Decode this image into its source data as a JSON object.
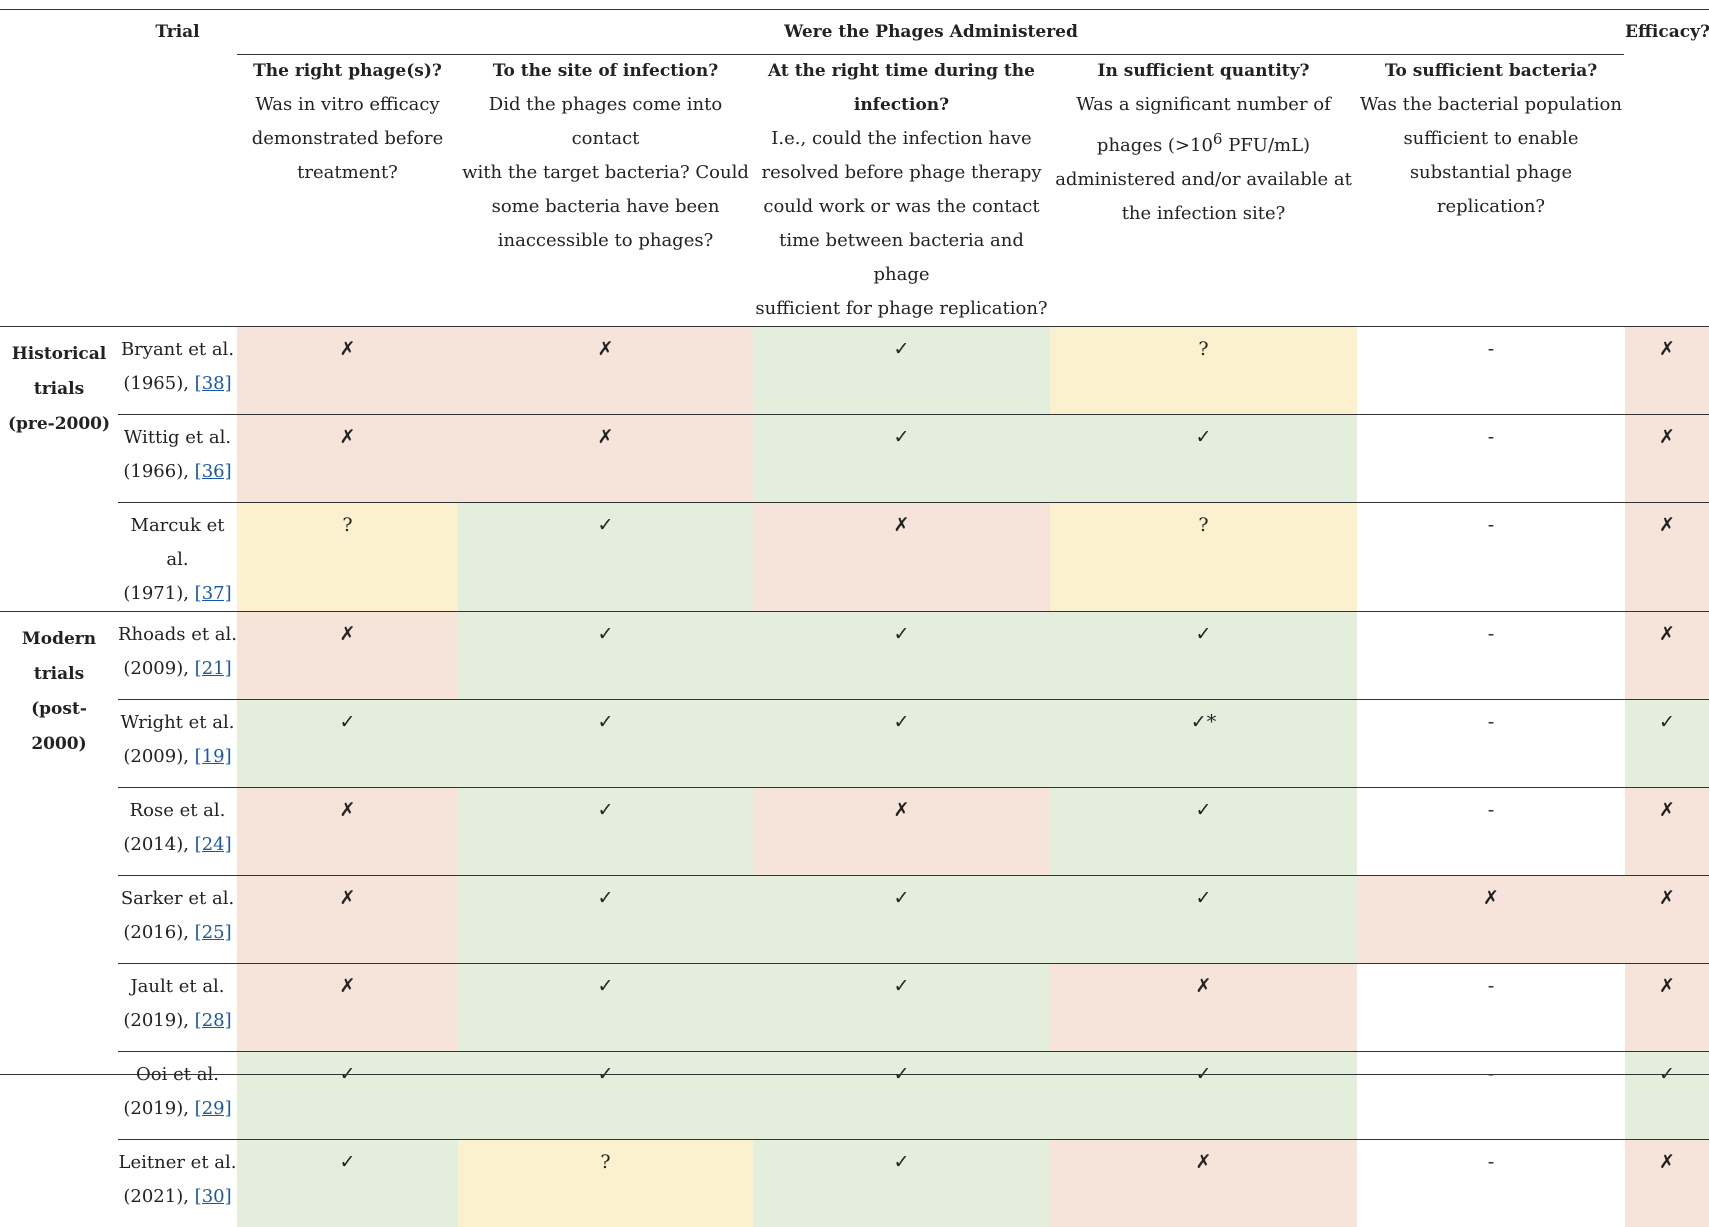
{
  "header": {
    "trial": "Trial",
    "group": "Were the Phages Administered",
    "efficacy": "Efficacy?",
    "columns": [
      {
        "title": "The right phage(s)?",
        "desc": [
          "Was in vitro efficacy",
          "demonstrated before",
          "treatment?"
        ]
      },
      {
        "title": "To the site of infection?",
        "desc": [
          "Did the phages come into contact",
          "with the target bacteria? Could",
          "some bacteria have been",
          "inaccessible to phages?"
        ]
      },
      {
        "title_lines": [
          "At the right time during the",
          "infection?"
        ],
        "desc": [
          "I.e., could the infection have",
          "resolved before phage therapy",
          "could work or was the contact",
          "time between bacteria and phage",
          "sufficient for phage replication?"
        ]
      },
      {
        "title": "In sufficient quantity?",
        "desc_1": "Was a significant number of",
        "desc_2a": "phages (>10",
        "desc_2sup": "6",
        "desc_2b": " PFU/mL)",
        "desc_3": "administered and/or available at",
        "desc_4": "the infection site?"
      },
      {
        "title": "To sufficient bacteria?",
        "desc": [
          "Was the bacterial population",
          "sufficient to enable",
          "substantial phage replication?"
        ]
      }
    ]
  },
  "groups": {
    "historical": [
      "Historical",
      "trials",
      "(pre-2000)"
    ],
    "modern": [
      "Modern",
      "trials",
      "(post-",
      "2000)"
    ]
  },
  "rows": [
    {
      "name": "Bryant et al.",
      "year": "(1965), ",
      "ref": "[38]",
      "cells": [
        "✗",
        "✗",
        "✓",
        "?",
        "-",
        "✗"
      ],
      "colors": [
        "red",
        "red",
        "green",
        "yellow",
        "white",
        "red"
      ]
    },
    {
      "name": "Wittig et al.",
      "year": "(1966), ",
      "ref": "[36]",
      "cells": [
        "✗",
        "✗",
        "✓",
        "✓",
        "-",
        "✗"
      ],
      "colors": [
        "red",
        "red",
        "green",
        "green",
        "white",
        "red"
      ]
    },
    {
      "name": "Marcuk et al.",
      "year": "(1971), ",
      "ref": "[37]",
      "cells": [
        "?",
        "✓",
        "✗",
        "?",
        "-",
        "✗"
      ],
      "colors": [
        "yellow",
        "green",
        "red",
        "yellow",
        "white",
        "red"
      ]
    },
    {
      "name": "Rhoads et al.",
      "year": "(2009), ",
      "ref": "[21]",
      "cells": [
        "✗",
        "✓",
        "✓",
        "✓",
        "-",
        "✗"
      ],
      "colors": [
        "red",
        "green",
        "green",
        "green",
        "white",
        "red"
      ]
    },
    {
      "name": "Wright et al.",
      "year": "(2009), ",
      "ref": "[19]",
      "cells": [
        "✓",
        "✓",
        "✓",
        "✓*",
        "-",
        "✓"
      ],
      "colors": [
        "green",
        "green",
        "green",
        "green",
        "white",
        "green"
      ]
    },
    {
      "name": "Rose et al.",
      "year": "(2014), ",
      "ref": "[24]",
      "cells": [
        "✗",
        "✓",
        "✗",
        "✓",
        "-",
        "✗"
      ],
      "colors": [
        "red",
        "green",
        "red",
        "green",
        "white",
        "red"
      ]
    },
    {
      "name": "Sarker et al.",
      "year": "(2016), ",
      "ref": "[25]",
      "cells": [
        "✗",
        "✓",
        "✓",
        "✓",
        "✗",
        "✗"
      ],
      "colors": [
        "red",
        "green",
        "green",
        "green",
        "red",
        "red"
      ]
    },
    {
      "name": "Jault et al.",
      "year": "(2019), ",
      "ref": "[28]",
      "cells": [
        "✗",
        "✓",
        "✓",
        "✗",
        "-",
        "✗"
      ],
      "colors": [
        "red",
        "green",
        "green",
        "red",
        "white",
        "red"
      ]
    },
    {
      "name": "Ooi et al.",
      "year": "(2019), ",
      "ref": "[29]",
      "cells": [
        "✓",
        "✓",
        "✓",
        "✓",
        "-",
        "✓"
      ],
      "colors": [
        "green",
        "green",
        "green",
        "green",
        "white",
        "green"
      ]
    },
    {
      "name": "Leitner et al.",
      "year": "(2021), ",
      "ref": "[30]",
      "cells": [
        "✓",
        "?",
        "✓",
        "✗",
        "-",
        "✗"
      ],
      "colors": [
        "green",
        "yellow",
        "green",
        "red",
        "white",
        "red"
      ]
    }
  ],
  "colors": {
    "red": "#f6e3d9",
    "green": "#e3eedd",
    "yellow": "#fcf1cf",
    "link": "#1a57a8"
  }
}
